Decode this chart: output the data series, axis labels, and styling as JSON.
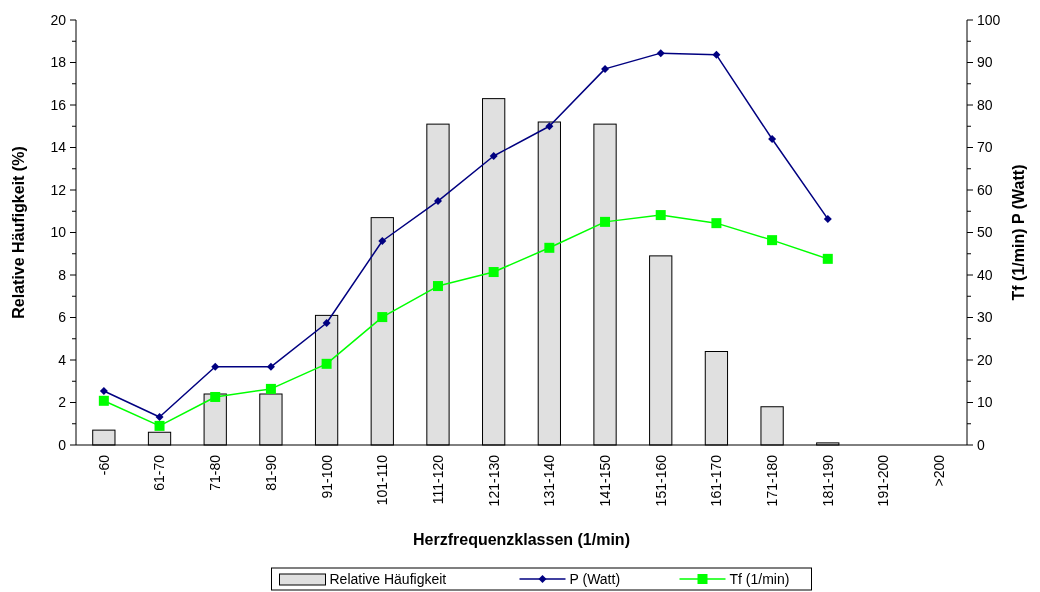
{
  "chart_data": {
    "type": "bar",
    "xlabel": "Herzfrequenzklassen (1/min)",
    "ylabel": "Relative Häufigkeit (%)",
    "y2label": "Tf (1/min)     P (Watt)",
    "categories": [
      "-60",
      "61-70",
      "71-80",
      "81-90",
      "91-100",
      "101-110",
      "111-120",
      "121-130",
      "131-140",
      "141-150",
      "151-160",
      "161-170",
      "171-180",
      "181-190",
      "191-200",
      ">200"
    ],
    "series": [
      {
        "name": "Relative Häufigkeit",
        "color": "#e0e0e0",
        "values": [
          0.7,
          0.6,
          2.4,
          2.4,
          6.1,
          10.7,
          15.1,
          16.3,
          15.2,
          15.1,
          8.9,
          4.4,
          1.8,
          0.1,
          0,
          0
        ]
      },
      {
        "name": "P (Watt)",
        "type": "line",
        "axis": "y2",
        "marker": "diamond",
        "color": "#000080",
        "values": [
          12.7,
          6.6,
          18.4,
          18.4,
          28.7,
          48,
          57.4,
          68,
          75,
          88.5,
          92.2,
          91.8,
          72,
          53.2,
          null,
          null
        ]
      },
      {
        "name": "Tf (1/min)",
        "type": "line",
        "axis": "y2",
        "marker": "square",
        "color": "#00ff00",
        "values": [
          10.4,
          4.5,
          11.3,
          13.2,
          19.1,
          30.1,
          37.4,
          40.7,
          46.4,
          52.5,
          54.1,
          52.2,
          48.2,
          43.8,
          null,
          null
        ]
      }
    ],
    "ylim": [
      0,
      20
    ],
    "yticks": [
      0,
      {
        "value": 1,
        "label": null
      },
      2,
      {
        "value": 3,
        "label": null
      },
      4,
      {
        "value": 5,
        "label": null
      },
      6,
      {
        "value": 7,
        "label": null
      },
      8,
      {
        "value": 9,
        "label": null
      },
      10,
      {
        "value": 11,
        "label": null
      },
      12,
      {
        "value": 13,
        "label": null
      },
      14,
      {
        "value": 15,
        "label": null
      },
      16,
      {
        "value": 17,
        "label": null
      },
      18,
      {
        "value": 19,
        "label": null
      },
      20
    ],
    "y2lim": [
      0,
      100
    ],
    "y2ticks": [
      0,
      {
        "value": 5,
        "label": null
      },
      10,
      {
        "value": 15,
        "label": null
      },
      20,
      {
        "value": 25,
        "label": null
      },
      30,
      {
        "value": 35,
        "label": null
      },
      40,
      {
        "value": 45,
        "label": null
      },
      50,
      {
        "value": 55,
        "label": null
      },
      60,
      {
        "value": 65,
        "label": null
      },
      70,
      {
        "value": 75,
        "label": null
      },
      80,
      {
        "value": 85,
        "label": null
      },
      90,
      {
        "value": 95,
        "label": null
      },
      100
    ],
    "grid": false,
    "legend": "bottom"
  }
}
